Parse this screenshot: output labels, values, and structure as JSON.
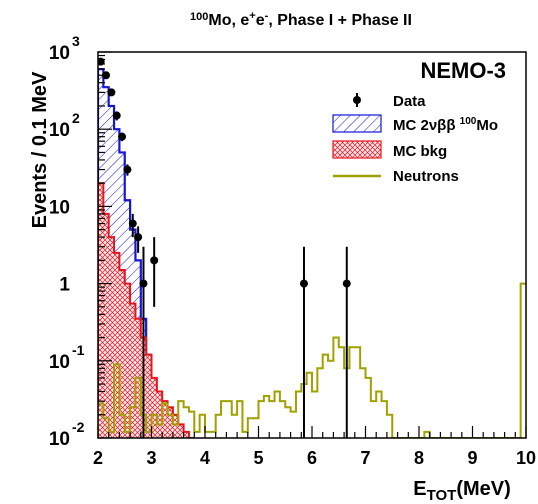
{
  "chart_data": {
    "type": "histogram",
    "title": {
      "sup": "100",
      "main": "Mo, e",
      "sup2": "+",
      "mid": "e",
      "sup3": "-",
      "rest": ", Phase I + Phase II"
    },
    "experiment_label": "NEMO-3",
    "ylabel": "Events / 0.1 MeV",
    "xlabel": {
      "main": "E",
      "sub": "TOT",
      "unit": "(MeV)"
    },
    "xlim": [
      2,
      10
    ],
    "ylim": [
      0.01,
      1000
    ],
    "log_y": true,
    "x_ticks": [
      "2",
      "3",
      "4",
      "5",
      "6",
      "7",
      "8",
      "9",
      "10"
    ],
    "y_ticks": [
      {
        "value": 1000,
        "base": "10",
        "exp": "3"
      },
      {
        "value": 100,
        "base": "10",
        "exp": "2"
      },
      {
        "value": 10,
        "base": "10",
        "exp": ""
      },
      {
        "value": 1,
        "base": "1",
        "exp": ""
      },
      {
        "value": 0.1,
        "base": "10",
        "exp": "-1"
      },
      {
        "value": 0.01,
        "base": "10",
        "exp": "-2"
      }
    ],
    "legend": {
      "position": "top-right",
      "entries": [
        {
          "key": "data",
          "label": "Data"
        },
        {
          "key": "mc2nu",
          "label": "MC 2νββ ",
          "sup": "100",
          "suffix": "Mo"
        },
        {
          "key": "bkg",
          "label": "MC bkg"
        },
        {
          "key": "neutrons",
          "label": "Neutrons"
        }
      ]
    },
    "colors": {
      "mc2nu": "#1515d8",
      "bkg": "#e8141c",
      "neutrons": "#a0a000",
      "data": "#000000"
    },
    "mc2nu_total": {
      "edges": [
        2.0,
        2.1,
        2.2,
        2.3,
        2.4,
        2.5,
        2.6,
        2.7,
        2.8,
        2.9,
        3.0
      ],
      "values": [
        600,
        350,
        200,
        100,
        50,
        12,
        5,
        2,
        0.35,
        0.12
      ]
    },
    "bkg": {
      "edges": [
        2.0,
        2.1,
        2.2,
        2.3,
        2.4,
        2.5,
        2.6,
        2.7,
        2.8,
        2.9,
        3.0,
        3.1,
        3.2,
        3.3,
        3.4,
        3.5,
        3.6,
        3.7,
        3.8
      ],
      "values": [
        20,
        8,
        4,
        2.5,
        1.5,
        1.0,
        0.55,
        0.35,
        0.2,
        0.12,
        0.06,
        0.04,
        0.03,
        0.025,
        0.02,
        0.015,
        0.012,
        0.01
      ]
    },
    "neutrons": {
      "edges": [
        2.0,
        2.1,
        2.2,
        2.3,
        2.4,
        2.5,
        2.6,
        2.7,
        2.8,
        2.9,
        3.0,
        3.1,
        3.2,
        3.3,
        3.4,
        3.5,
        3.6,
        3.7,
        3.8,
        3.9,
        4.0,
        4.1,
        4.2,
        4.3,
        4.4,
        4.5,
        4.6,
        4.7,
        4.8,
        4.9,
        5.0,
        5.1,
        5.2,
        5.3,
        5.4,
        5.5,
        5.6,
        5.7,
        5.8,
        5.9,
        6.0,
        6.1,
        6.2,
        6.3,
        6.4,
        6.5,
        6.6,
        6.7,
        6.8,
        6.9,
        7.0,
        7.1,
        7.2,
        7.3,
        7.4,
        7.5,
        7.6,
        7.7,
        7.8,
        7.9,
        8.0,
        8.1,
        8.2,
        8.3,
        8.4,
        8.5,
        8.6,
        8.7,
        8.8,
        8.9,
        9.0,
        9.1,
        9.2,
        9.3,
        9.4,
        9.5,
        9.6,
        9.7,
        9.8,
        9.9,
        10.0
      ],
      "values": [
        0.028,
        0.018,
        0.012,
        0.09,
        0.02,
        0.012,
        0.025,
        0.06,
        0.02,
        0.012,
        0.02,
        0.015,
        0.028,
        0.02,
        0.015,
        0.03,
        0.025,
        0.022,
        0.012,
        0.02,
        0.012,
        0.012,
        0.02,
        0.03,
        0.03,
        0.02,
        0.03,
        0.012,
        0.018,
        0.018,
        0.03,
        0.035,
        0.03,
        0.04,
        0.03,
        0.025,
        0.022,
        0.04,
        0.05,
        0.07,
        0.04,
        0.08,
        0.12,
        0.1,
        0.2,
        0.15,
        0.08,
        0.15,
        0.15,
        0.08,
        0.06,
        0.03,
        0.04,
        0.03,
        0.02,
        0.01,
        0.01,
        0.01,
        0.01,
        0.01,
        0.01,
        0.012,
        0.01,
        0.01,
        0.01,
        0.01,
        0.01,
        0.01,
        0.01,
        0.01,
        0.01,
        0.01,
        0.01,
        0.01,
        0.01,
        0.01,
        0.01,
        0.01,
        0.01,
        1.0
      ]
    },
    "data_points": [
      {
        "x": 2.05,
        "y": 750,
        "lo": 700,
        "hi": 800
      },
      {
        "x": 2.15,
        "y": 500,
        "lo": 460,
        "hi": 540
      },
      {
        "x": 2.25,
        "y": 300,
        "lo": 270,
        "hi": 330
      },
      {
        "x": 2.35,
        "y": 150,
        "lo": 130,
        "hi": 170
      },
      {
        "x": 2.45,
        "y": 80,
        "lo": 70,
        "hi": 90
      },
      {
        "x": 2.55,
        "y": 30,
        "lo": 25,
        "hi": 35
      },
      {
        "x": 2.65,
        "y": 6,
        "lo": 4,
        "hi": 8
      },
      {
        "x": 2.75,
        "y": 4,
        "lo": 2.5,
        "hi": 5.5
      },
      {
        "x": 2.85,
        "y": 1.0,
        "lo": 0.01,
        "hi": 3
      },
      {
        "x": 3.05,
        "y": 2,
        "lo": 0.5,
        "hi": 4
      },
      {
        "x": 5.85,
        "y": 1.0,
        "lo": 0.01,
        "hi": 3
      },
      {
        "x": 6.65,
        "y": 1.0,
        "lo": 0.01,
        "hi": 3
      }
    ]
  }
}
